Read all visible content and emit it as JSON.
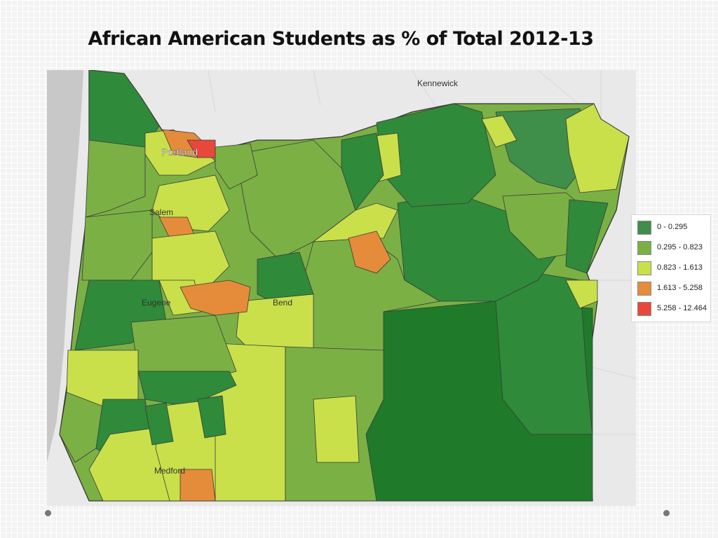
{
  "title": "African American Students as % of Total  2012-13",
  "map": {
    "cities": [
      {
        "name": "Kennewick",
        "text": "Kennewick"
      },
      {
        "name": "Portland",
        "text": "Portland"
      },
      {
        "name": "Salem",
        "text": "Salem"
      },
      {
        "name": "Eugene",
        "text": "Eugene"
      },
      {
        "name": "Bend",
        "text": "Bend"
      },
      {
        "name": "Medford",
        "text": "Medford"
      }
    ],
    "colors": {
      "background": "#e9e9e9",
      "water": "#c8c8c8",
      "class_1": "#3f8e4a",
      "class_2": "#7bb045",
      "class_3": "#c9e04a",
      "class_4": "#e58c3a",
      "class_5": "#e8483c",
      "dark_green": "#1f7a2a"
    }
  },
  "legend": {
    "items": [
      {
        "label": "0 - 0.295",
        "color": "#3f8e4a"
      },
      {
        "label": "0.295 - 0.823",
        "color": "#7bb045"
      },
      {
        "label": "0.823 - 1.613",
        "color": "#c9e04a"
      },
      {
        "label": "1.613 - 5.258",
        "color": "#e58c3a"
      },
      {
        "label": "5.258 - 12.464",
        "color": "#e8483c"
      }
    ]
  }
}
